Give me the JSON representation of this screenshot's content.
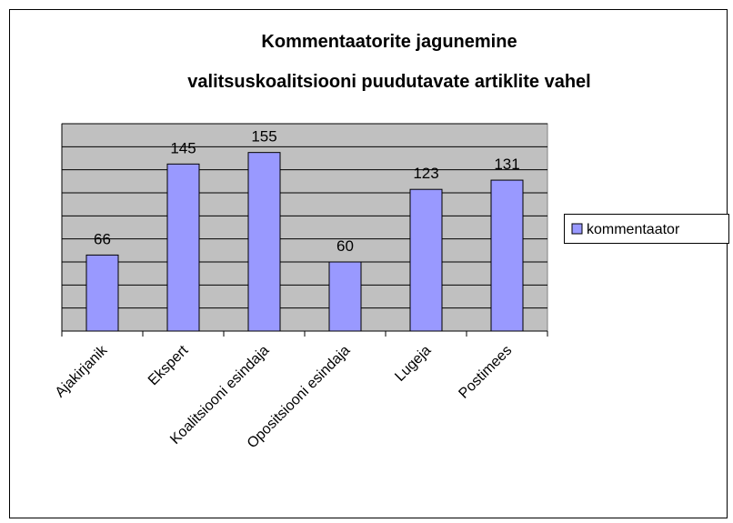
{
  "chart_data": {
    "type": "bar",
    "title": [
      "Kommentaatorite jagunemine",
      "valitsuskoalitsiooni puudutavate artiklite vahel"
    ],
    "categories": [
      "Ajakirjanik",
      "Ekspert",
      "Koalitsiooni esindaja",
      "Opositsiooni esindaja",
      "Lugeja",
      "Postimees"
    ],
    "series": [
      {
        "name": "kommentaator",
        "color": "#9999ff",
        "values": [
          66,
          145,
          155,
          60,
          123,
          131
        ]
      }
    ],
    "ylim": [
      0,
      180
    ],
    "yticks": [
      0,
      20,
      40,
      60,
      80,
      100,
      120,
      140,
      160,
      180
    ],
    "grid": true,
    "legend": "right"
  }
}
